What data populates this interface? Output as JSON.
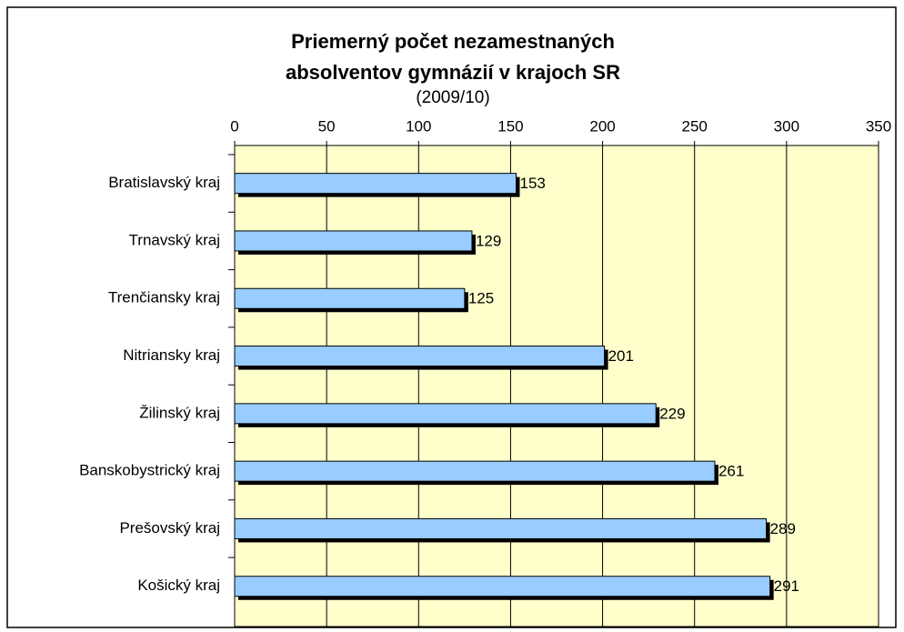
{
  "chart_data": {
    "type": "bar",
    "orientation": "horizontal",
    "title": [
      "Priemerný počet nezamestnaných",
      "absolventov gymnázií v krajoch SR"
    ],
    "subtitle": "(2009/10)",
    "categories": [
      "Bratislavský kraj",
      "Trnavský kraj",
      "Trenčiansky kraj",
      "Nitriansky kraj",
      "Žilinský kraj",
      "Banskobystrický kraj",
      "Prešovský kraj",
      "Košický kraj"
    ],
    "values": [
      153,
      129,
      125,
      201,
      229,
      261,
      289,
      291
    ],
    "color": "#99ccff",
    "xlim": [
      0,
      350
    ],
    "xticks": [
      0,
      50,
      100,
      150,
      200,
      250,
      300,
      350
    ],
    "grid": true,
    "plot_background": "#ffffcc"
  }
}
